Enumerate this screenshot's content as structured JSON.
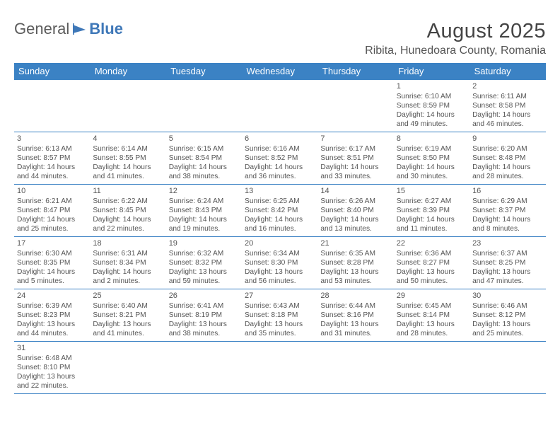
{
  "logo": {
    "first": "General",
    "second": "Blue"
  },
  "title": "August 2025",
  "location": "Ribita, Hunedoara County, Romania",
  "colors": {
    "header_bg": "#3b82c4",
    "header_text": "#ffffff",
    "border": "#3b82c4",
    "text": "#555555",
    "logo_gray": "#5b5b5b",
    "logo_blue": "#3f78b8",
    "background": "#ffffff"
  },
  "dayHeaders": [
    "Sunday",
    "Monday",
    "Tuesday",
    "Wednesday",
    "Thursday",
    "Friday",
    "Saturday"
  ],
  "weeks": [
    [
      null,
      null,
      null,
      null,
      null,
      {
        "n": "1",
        "sr": "6:10 AM",
        "ss": "8:59 PM",
        "dl": "14 hours and 49 minutes."
      },
      {
        "n": "2",
        "sr": "6:11 AM",
        "ss": "8:58 PM",
        "dl": "14 hours and 46 minutes."
      }
    ],
    [
      {
        "n": "3",
        "sr": "6:13 AM",
        "ss": "8:57 PM",
        "dl": "14 hours and 44 minutes."
      },
      {
        "n": "4",
        "sr": "6:14 AM",
        "ss": "8:55 PM",
        "dl": "14 hours and 41 minutes."
      },
      {
        "n": "5",
        "sr": "6:15 AM",
        "ss": "8:54 PM",
        "dl": "14 hours and 38 minutes."
      },
      {
        "n": "6",
        "sr": "6:16 AM",
        "ss": "8:52 PM",
        "dl": "14 hours and 36 minutes."
      },
      {
        "n": "7",
        "sr": "6:17 AM",
        "ss": "8:51 PM",
        "dl": "14 hours and 33 minutes."
      },
      {
        "n": "8",
        "sr": "6:19 AM",
        "ss": "8:50 PM",
        "dl": "14 hours and 30 minutes."
      },
      {
        "n": "9",
        "sr": "6:20 AM",
        "ss": "8:48 PM",
        "dl": "14 hours and 28 minutes."
      }
    ],
    [
      {
        "n": "10",
        "sr": "6:21 AM",
        "ss": "8:47 PM",
        "dl": "14 hours and 25 minutes."
      },
      {
        "n": "11",
        "sr": "6:22 AM",
        "ss": "8:45 PM",
        "dl": "14 hours and 22 minutes."
      },
      {
        "n": "12",
        "sr": "6:24 AM",
        "ss": "8:43 PM",
        "dl": "14 hours and 19 minutes."
      },
      {
        "n": "13",
        "sr": "6:25 AM",
        "ss": "8:42 PM",
        "dl": "14 hours and 16 minutes."
      },
      {
        "n": "14",
        "sr": "6:26 AM",
        "ss": "8:40 PM",
        "dl": "14 hours and 13 minutes."
      },
      {
        "n": "15",
        "sr": "6:27 AM",
        "ss": "8:39 PM",
        "dl": "14 hours and 11 minutes."
      },
      {
        "n": "16",
        "sr": "6:29 AM",
        "ss": "8:37 PM",
        "dl": "14 hours and 8 minutes."
      }
    ],
    [
      {
        "n": "17",
        "sr": "6:30 AM",
        "ss": "8:35 PM",
        "dl": "14 hours and 5 minutes."
      },
      {
        "n": "18",
        "sr": "6:31 AM",
        "ss": "8:34 PM",
        "dl": "14 hours and 2 minutes."
      },
      {
        "n": "19",
        "sr": "6:32 AM",
        "ss": "8:32 PM",
        "dl": "13 hours and 59 minutes."
      },
      {
        "n": "20",
        "sr": "6:34 AM",
        "ss": "8:30 PM",
        "dl": "13 hours and 56 minutes."
      },
      {
        "n": "21",
        "sr": "6:35 AM",
        "ss": "8:28 PM",
        "dl": "13 hours and 53 minutes."
      },
      {
        "n": "22",
        "sr": "6:36 AM",
        "ss": "8:27 PM",
        "dl": "13 hours and 50 minutes."
      },
      {
        "n": "23",
        "sr": "6:37 AM",
        "ss": "8:25 PM",
        "dl": "13 hours and 47 minutes."
      }
    ],
    [
      {
        "n": "24",
        "sr": "6:39 AM",
        "ss": "8:23 PM",
        "dl": "13 hours and 44 minutes."
      },
      {
        "n": "25",
        "sr": "6:40 AM",
        "ss": "8:21 PM",
        "dl": "13 hours and 41 minutes."
      },
      {
        "n": "26",
        "sr": "6:41 AM",
        "ss": "8:19 PM",
        "dl": "13 hours and 38 minutes."
      },
      {
        "n": "27",
        "sr": "6:43 AM",
        "ss": "8:18 PM",
        "dl": "13 hours and 35 minutes."
      },
      {
        "n": "28",
        "sr": "6:44 AM",
        "ss": "8:16 PM",
        "dl": "13 hours and 31 minutes."
      },
      {
        "n": "29",
        "sr": "6:45 AM",
        "ss": "8:14 PM",
        "dl": "13 hours and 28 minutes."
      },
      {
        "n": "30",
        "sr": "6:46 AM",
        "ss": "8:12 PM",
        "dl": "13 hours and 25 minutes."
      }
    ],
    [
      {
        "n": "31",
        "sr": "6:48 AM",
        "ss": "8:10 PM",
        "dl": "13 hours and 22 minutes."
      },
      null,
      null,
      null,
      null,
      null,
      null
    ]
  ],
  "labels": {
    "sunrise": "Sunrise:",
    "sunset": "Sunset:",
    "daylight": "Daylight:"
  }
}
